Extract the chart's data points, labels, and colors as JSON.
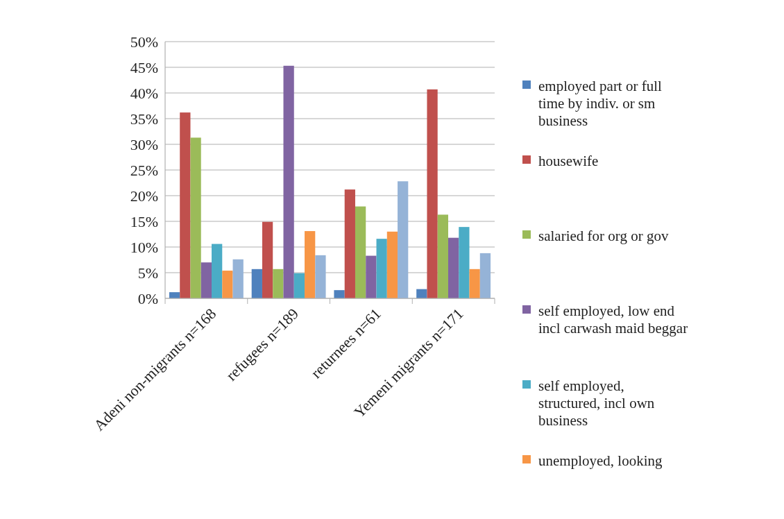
{
  "chart_data": {
    "type": "bar",
    "categories": [
      "Adeni non-migrants n=168",
      "refugees n=189",
      "returnees n=61",
      "Yemeni migrants n=171"
    ],
    "series": [
      {
        "name": "employed part or full time by indiv. or sm business",
        "color": "#4f81bd",
        "values": [
          1.2,
          5.7,
          1.6,
          1.8
        ]
      },
      {
        "name": "housewife",
        "color": "#c0504d",
        "values": [
          36.2,
          14.9,
          21.2,
          40.7
        ]
      },
      {
        "name": "salaried for org or gov",
        "color": "#9bbb59",
        "values": [
          31.3,
          5.7,
          17.9,
          16.3
        ]
      },
      {
        "name": "self employed, low end incl carwash maid beggar",
        "color": "#8064a2",
        "values": [
          7.0,
          45.3,
          8.3,
          11.8
        ]
      },
      {
        "name": "self employed, structured, incl own business",
        "color": "#4bacc6",
        "values": [
          10.6,
          4.9,
          11.6,
          13.9
        ]
      },
      {
        "name": "unemployed, looking",
        "color": "#f79646",
        "values": [
          5.4,
          13.1,
          13.0,
          5.7
        ]
      },
      {
        "color": "#95b3d7",
        "values": [
          7.6,
          8.4,
          22.8,
          8.8
        ]
      }
    ],
    "ylim": [
      0,
      50
    ],
    "yticks": [
      {
        "value": 0,
        "label": "0%"
      },
      {
        "value": 5,
        "label": "5%"
      },
      {
        "value": 10,
        "label": "10%"
      },
      {
        "value": 15,
        "label": "15%"
      },
      {
        "value": 20,
        "label": "20%"
      },
      {
        "value": 25,
        "label": "25%"
      },
      {
        "value": 30,
        "label": "30%"
      },
      {
        "value": 35,
        "label": "35%"
      },
      {
        "value": 40,
        "label": "40%"
      },
      {
        "value": 45,
        "label": "45%"
      },
      {
        "value": 50,
        "label": "50%"
      }
    ],
    "grid": "y",
    "legend": "right"
  }
}
